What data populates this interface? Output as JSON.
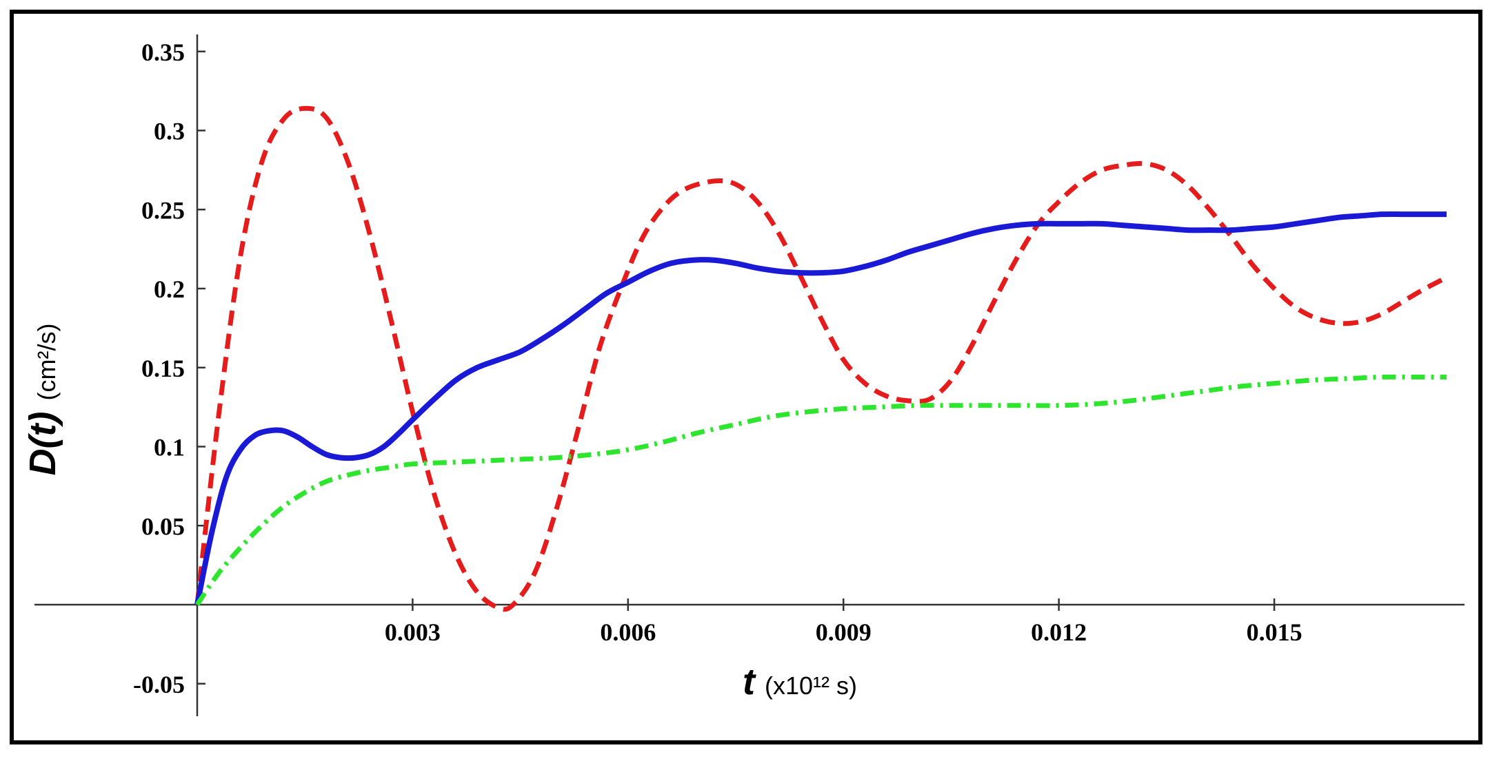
{
  "chart_data": {
    "type": "line",
    "title": "",
    "ylabel": {
      "main": "D(t)",
      "unit": "(cm²/s)"
    },
    "xlabel": {
      "main": "t",
      "unit": "(x10¹² s)"
    },
    "xlim": [
      0,
      0.0174
    ],
    "ylim": [
      -0.07,
      0.355
    ],
    "x_ticks": [
      {
        "value": 0.003,
        "label": "0.003"
      },
      {
        "value": 0.006,
        "label": "0.006"
      },
      {
        "value": 0.009,
        "label": "0.009"
      },
      {
        "value": 0.012,
        "label": "0.012"
      },
      {
        "value": 0.015,
        "label": "0.015"
      }
    ],
    "y_ticks": [
      {
        "value": -0.05,
        "label": "-0.05"
      },
      {
        "value": 0.05,
        "label": "0.05"
      },
      {
        "value": 0.1,
        "label": "0.1"
      },
      {
        "value": 0.15,
        "label": "0.15"
      },
      {
        "value": 0.2,
        "label": "0.2"
      },
      {
        "value": 0.25,
        "label": "0.25"
      },
      {
        "value": 0.3,
        "label": "0.3"
      },
      {
        "value": 0.35,
        "label": "0.35"
      }
    ],
    "grid": false,
    "legend": "none",
    "series": [
      {
        "color": "#e51c1c",
        "style": "dashed",
        "points": [
          [
            0,
            0
          ],
          [
            0.0003,
            0.12
          ],
          [
            0.0006,
            0.22
          ],
          [
            0.0009,
            0.28
          ],
          [
            0.0012,
            0.307
          ],
          [
            0.0015,
            0.314
          ],
          [
            0.0018,
            0.308
          ],
          [
            0.0021,
            0.28
          ],
          [
            0.0024,
            0.235
          ],
          [
            0.0027,
            0.18
          ],
          [
            0.003,
            0.122
          ],
          [
            0.0033,
            0.07
          ],
          [
            0.0036,
            0.032
          ],
          [
            0.0039,
            0.008
          ],
          [
            0.0042,
            -0.002
          ],
          [
            0.0044,
            0.0
          ],
          [
            0.0047,
            0.02
          ],
          [
            0.005,
            0.06
          ],
          [
            0.0053,
            0.11
          ],
          [
            0.0056,
            0.162
          ],
          [
            0.0059,
            0.2
          ],
          [
            0.0062,
            0.232
          ],
          [
            0.0065,
            0.252
          ],
          [
            0.0068,
            0.263
          ],
          [
            0.0072,
            0.268
          ],
          [
            0.0075,
            0.266
          ],
          [
            0.0078,
            0.255
          ],
          [
            0.0081,
            0.235
          ],
          [
            0.0084,
            0.208
          ],
          [
            0.0087,
            0.18
          ],
          [
            0.009,
            0.155
          ],
          [
            0.0093,
            0.14
          ],
          [
            0.0096,
            0.132
          ],
          [
            0.0099,
            0.129
          ],
          [
            0.0102,
            0.13
          ],
          [
            0.0105,
            0.142
          ],
          [
            0.0108,
            0.165
          ],
          [
            0.0111,
            0.192
          ],
          [
            0.0114,
            0.218
          ],
          [
            0.0117,
            0.24
          ],
          [
            0.012,
            0.255
          ],
          [
            0.0123,
            0.267
          ],
          [
            0.0126,
            0.275
          ],
          [
            0.0129,
            0.278
          ],
          [
            0.0132,
            0.279
          ],
          [
            0.0135,
            0.275
          ],
          [
            0.0138,
            0.265
          ],
          [
            0.0141,
            0.25
          ],
          [
            0.0144,
            0.233
          ],
          [
            0.0147,
            0.215
          ],
          [
            0.015,
            0.2
          ],
          [
            0.0153,
            0.188
          ],
          [
            0.0156,
            0.181
          ],
          [
            0.0159,
            0.178
          ],
          [
            0.0162,
            0.179
          ],
          [
            0.0165,
            0.184
          ],
          [
            0.0168,
            0.192
          ],
          [
            0.0171,
            0.2
          ],
          [
            0.0174,
            0.207
          ]
        ]
      },
      {
        "color": "#1a1ad6",
        "style": "solid",
        "points": [
          [
            0,
            0
          ],
          [
            0.0002,
            0.045
          ],
          [
            0.0004,
            0.08
          ],
          [
            0.0006,
            0.098
          ],
          [
            0.0008,
            0.107
          ],
          [
            0.001,
            0.11
          ],
          [
            0.0012,
            0.11
          ],
          [
            0.0014,
            0.106
          ],
          [
            0.0016,
            0.1
          ],
          [
            0.0018,
            0.095
          ],
          [
            0.002,
            0.093
          ],
          [
            0.0022,
            0.093
          ],
          [
            0.0024,
            0.095
          ],
          [
            0.0026,
            0.1
          ],
          [
            0.0028,
            0.108
          ],
          [
            0.003,
            0.117
          ],
          [
            0.0033,
            0.13
          ],
          [
            0.0036,
            0.142
          ],
          [
            0.0039,
            0.15
          ],
          [
            0.0042,
            0.155
          ],
          [
            0.0045,
            0.16
          ],
          [
            0.0048,
            0.168
          ],
          [
            0.0051,
            0.177
          ],
          [
            0.0054,
            0.187
          ],
          [
            0.0057,
            0.197
          ],
          [
            0.006,
            0.204
          ],
          [
            0.0063,
            0.211
          ],
          [
            0.0066,
            0.216
          ],
          [
            0.0069,
            0.218
          ],
          [
            0.0072,
            0.218
          ],
          [
            0.0075,
            0.216
          ],
          [
            0.0078,
            0.213
          ],
          [
            0.0081,
            0.211
          ],
          [
            0.0084,
            0.21
          ],
          [
            0.0087,
            0.21
          ],
          [
            0.009,
            0.211
          ],
          [
            0.0093,
            0.214
          ],
          [
            0.0096,
            0.218
          ],
          [
            0.0099,
            0.223
          ],
          [
            0.0102,
            0.227
          ],
          [
            0.0105,
            0.231
          ],
          [
            0.0108,
            0.235
          ],
          [
            0.0111,
            0.238
          ],
          [
            0.0114,
            0.24
          ],
          [
            0.0117,
            0.241
          ],
          [
            0.012,
            0.241
          ],
          [
            0.0123,
            0.241
          ],
          [
            0.0126,
            0.241
          ],
          [
            0.0129,
            0.24
          ],
          [
            0.0132,
            0.239
          ],
          [
            0.0135,
            0.238
          ],
          [
            0.0138,
            0.237
          ],
          [
            0.0141,
            0.237
          ],
          [
            0.0144,
            0.237
          ],
          [
            0.0147,
            0.238
          ],
          [
            0.015,
            0.239
          ],
          [
            0.0153,
            0.241
          ],
          [
            0.0156,
            0.243
          ],
          [
            0.0159,
            0.245
          ],
          [
            0.0162,
            0.246
          ],
          [
            0.0165,
            0.247
          ],
          [
            0.0168,
            0.247
          ],
          [
            0.0171,
            0.247
          ],
          [
            0.0174,
            0.247
          ]
        ]
      },
      {
        "color": "#2ee52e",
        "style": "dashdot",
        "points": [
          [
            0,
            0
          ],
          [
            0.0003,
            0.02
          ],
          [
            0.0006,
            0.036
          ],
          [
            0.0009,
            0.05
          ],
          [
            0.0012,
            0.062
          ],
          [
            0.0015,
            0.071
          ],
          [
            0.0018,
            0.078
          ],
          [
            0.0021,
            0.082
          ],
          [
            0.0024,
            0.085
          ],
          [
            0.0027,
            0.087
          ],
          [
            0.003,
            0.089
          ],
          [
            0.0035,
            0.09
          ],
          [
            0.004,
            0.091
          ],
          [
            0.0045,
            0.092
          ],
          [
            0.005,
            0.093
          ],
          [
            0.0055,
            0.095
          ],
          [
            0.006,
            0.098
          ],
          [
            0.0065,
            0.103
          ],
          [
            0.007,
            0.109
          ],
          [
            0.0075,
            0.114
          ],
          [
            0.008,
            0.119
          ],
          [
            0.0085,
            0.122
          ],
          [
            0.009,
            0.124
          ],
          [
            0.0095,
            0.125
          ],
          [
            0.01,
            0.126
          ],
          [
            0.0105,
            0.126
          ],
          [
            0.011,
            0.126
          ],
          [
            0.0115,
            0.126
          ],
          [
            0.012,
            0.126
          ],
          [
            0.0125,
            0.127
          ],
          [
            0.013,
            0.129
          ],
          [
            0.0135,
            0.132
          ],
          [
            0.014,
            0.135
          ],
          [
            0.0145,
            0.138
          ],
          [
            0.015,
            0.14
          ],
          [
            0.0155,
            0.142
          ],
          [
            0.016,
            0.143
          ],
          [
            0.0165,
            0.144
          ],
          [
            0.017,
            0.144
          ],
          [
            0.0174,
            0.144
          ]
        ]
      }
    ]
  }
}
